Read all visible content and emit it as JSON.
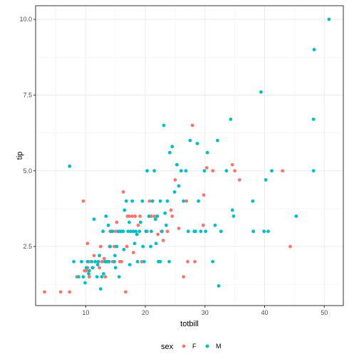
{
  "chart_data": {
    "type": "scatter",
    "xlabel": "totbill",
    "ylabel": "tip",
    "xlim": [
      1.6,
      53.2
    ],
    "ylim": [
      0.55,
      10.45
    ],
    "xticks": [
      10,
      20,
      30,
      40,
      50
    ],
    "yticks": [
      2.5,
      5.0,
      7.5,
      10.0
    ],
    "xtick_labels": [
      "10",
      "20",
      "30",
      "40",
      "50"
    ],
    "ytick_labels": [
      "2.5",
      "5.0",
      "7.5",
      "10.0"
    ],
    "grid": true,
    "theme": "bw",
    "legend": {
      "title": "sex",
      "position": "bottom",
      "entries": [
        "F",
        "M"
      ]
    },
    "colors": {
      "F": "#F8766D",
      "M": "#00BFC4"
    },
    "series": [
      {
        "name": "F",
        "color": "#F8766D",
        "points": [
          [
            3.1,
            1.0
          ],
          [
            5.8,
            1.0
          ],
          [
            7.3,
            1.0
          ],
          [
            8.5,
            1.5
          ],
          [
            9.6,
            4.0
          ],
          [
            9.8,
            1.7
          ],
          [
            10.1,
            1.7
          ],
          [
            10.3,
            2.6
          ],
          [
            10.6,
            1.5
          ],
          [
            10.3,
            1.8
          ],
          [
            10.6,
            2.0
          ],
          [
            11.1,
            1.8
          ],
          [
            11.4,
            2.2
          ],
          [
            11.6,
            2.0
          ],
          [
            12.1,
            2.0
          ],
          [
            12.3,
            1.8
          ],
          [
            12.5,
            2.5
          ],
          [
            12.7,
            2.0
          ],
          [
            13.3,
            1.5
          ],
          [
            13.4,
            2.0
          ],
          [
            13.8,
            2.0
          ],
          [
            14.0,
            2.5
          ],
          [
            14.1,
            3.0
          ],
          [
            14.5,
            2.0
          ],
          [
            14.8,
            2.5
          ],
          [
            15.0,
            3.0
          ],
          [
            15.4,
            3.0
          ],
          [
            15.7,
            2.0
          ],
          [
            16.0,
            2.0
          ],
          [
            16.3,
            4.3
          ],
          [
            16.7,
            1.0
          ],
          [
            17.0,
            3.5
          ],
          [
            16.9,
            2.5
          ],
          [
            17.3,
            3.5
          ],
          [
            17.5,
            3.0
          ],
          [
            17.8,
            3.5
          ],
          [
            18.3,
            3.5
          ],
          [
            18.8,
            3.2
          ],
          [
            19.1,
            3.5
          ],
          [
            19.4,
            2.0
          ],
          [
            20.3,
            3.0
          ],
          [
            20.7,
            4.0
          ],
          [
            21.0,
            3.5
          ],
          [
            21.5,
            3.5
          ],
          [
            22.1,
            2.9
          ],
          [
            22.7,
            3.0
          ],
          [
            23.0,
            2.7
          ],
          [
            23.7,
            3.0
          ],
          [
            24.5,
            3.5
          ],
          [
            25.0,
            4.7
          ],
          [
            25.6,
            3.1
          ],
          [
            26.4,
            1.5
          ],
          [
            27.1,
            2.0
          ],
          [
            27.9,
            6.5
          ],
          [
            28.3,
            2.0
          ],
          [
            29.7,
            3.2
          ],
          [
            29.8,
            4.2
          ],
          [
            30.3,
            5.1
          ],
          [
            31.3,
            5.0
          ],
          [
            34.6,
            5.2
          ],
          [
            35.0,
            5.0
          ],
          [
            35.8,
            4.7
          ],
          [
            43.0,
            5.0
          ],
          [
            44.3,
            2.5
          ],
          [
            15.2,
            3.3
          ],
          [
            13.1,
            2.1
          ],
          [
            18.0,
            2.3
          ],
          [
            24.3,
            3.7
          ],
          [
            26.9,
            4.0
          ]
        ]
      },
      {
        "name": "M",
        "color": "#00BFC4",
        "points": [
          [
            7.3,
            5.15
          ],
          [
            8.0,
            2.0
          ],
          [
            8.8,
            1.5
          ],
          [
            9.3,
            2.0
          ],
          [
            9.6,
            1.5
          ],
          [
            9.9,
            1.3
          ],
          [
            10.1,
            1.8
          ],
          [
            10.3,
            2.0
          ],
          [
            10.5,
            1.6
          ],
          [
            10.6,
            1.7
          ],
          [
            11.0,
            2.0
          ],
          [
            11.2,
            1.8
          ],
          [
            11.4,
            3.4
          ],
          [
            11.6,
            2.0
          ],
          [
            11.9,
            1.5
          ],
          [
            12.1,
            2.0
          ],
          [
            12.3,
            2.2
          ],
          [
            12.5,
            1.1
          ],
          [
            12.7,
            1.5
          ],
          [
            12.9,
            3.0
          ],
          [
            13.0,
            1.6
          ],
          [
            13.2,
            2.0
          ],
          [
            13.4,
            3.5
          ],
          [
            13.6,
            2.0
          ],
          [
            13.9,
            2.0
          ],
          [
            14.1,
            2.5
          ],
          [
            14.3,
            3.0
          ],
          [
            14.5,
            3.0
          ],
          [
            14.8,
            2.0
          ],
          [
            15.0,
            1.8
          ],
          [
            15.2,
            2.5
          ],
          [
            15.5,
            3.0
          ],
          [
            15.8,
            3.0
          ],
          [
            16.0,
            3.0
          ],
          [
            16.3,
            3.0
          ],
          [
            16.5,
            3.7
          ],
          [
            16.8,
            4.0
          ],
          [
            17.1,
            3.0
          ],
          [
            17.3,
            3.3
          ],
          [
            17.6,
            3.0
          ],
          [
            17.8,
            4.0
          ],
          [
            18.0,
            3.0
          ],
          [
            18.2,
            2.6
          ],
          [
            18.4,
            3.0
          ],
          [
            18.7,
            2.0
          ],
          [
            19.0,
            3.0
          ],
          [
            19.2,
            3.3
          ],
          [
            19.5,
            4.0
          ],
          [
            19.8,
            2.0
          ],
          [
            20.1,
            3.0
          ],
          [
            20.3,
            5.0
          ],
          [
            20.6,
            3.5
          ],
          [
            20.9,
            2.5
          ],
          [
            21.0,
            3.0
          ],
          [
            21.2,
            4.0
          ],
          [
            21.5,
            5.0
          ],
          [
            21.7,
            3.4
          ],
          [
            22.0,
            3.5
          ],
          [
            22.2,
            2.0
          ],
          [
            22.5,
            4.0
          ],
          [
            22.8,
            3.0
          ],
          [
            23.1,
            6.5
          ],
          [
            23.3,
            3.6
          ],
          [
            23.7,
            4.0
          ],
          [
            24.0,
            2.0
          ],
          [
            24.1,
            5.6
          ],
          [
            24.5,
            5.8
          ],
          [
            24.9,
            4.3
          ],
          [
            25.3,
            5.2
          ],
          [
            25.6,
            4.5
          ],
          [
            26.0,
            5.0
          ],
          [
            26.4,
            4.0
          ],
          [
            26.8,
            5.0
          ],
          [
            27.2,
            3.0
          ],
          [
            27.5,
            6.0
          ],
          [
            28.2,
            3.0
          ],
          [
            28.4,
            3.0
          ],
          [
            28.7,
            5.9
          ],
          [
            28.9,
            4.0
          ],
          [
            29.3,
            3.0
          ],
          [
            29.9,
            5.0
          ],
          [
            30.1,
            3.0
          ],
          [
            30.4,
            5.6
          ],
          [
            31.3,
            2.0
          ],
          [
            31.7,
            3.2
          ],
          [
            32.1,
            6.0
          ],
          [
            32.3,
            1.2
          ],
          [
            32.7,
            3.0
          ],
          [
            33.6,
            5.0
          ],
          [
            34.3,
            6.7
          ],
          [
            34.6,
            3.7
          ],
          [
            34.8,
            3.5
          ],
          [
            38.0,
            4.0
          ],
          [
            38.1,
            3.0
          ],
          [
            39.4,
            7.6
          ],
          [
            39.9,
            3.0
          ],
          [
            40.2,
            4.7
          ],
          [
            40.6,
            3.0
          ],
          [
            41.2,
            5.0
          ],
          [
            45.3,
            3.5
          ],
          [
            48.2,
            5.0
          ],
          [
            48.2,
            6.7
          ],
          [
            48.3,
            9.0
          ],
          [
            50.8,
            10.0
          ],
          [
            14.9,
            2.2
          ],
          [
            16.4,
            2.4
          ],
          [
            13.8,
            3.2
          ],
          [
            18.6,
            2.9
          ],
          [
            21.8,
            2.6
          ],
          [
            23.5,
            3.2
          ],
          [
            17.4,
            1.9
          ],
          [
            15.6,
            1.5
          ],
          [
            12.0,
            1.9
          ],
          [
            19.6,
            2.5
          ],
          [
            22.5,
            2.0
          ]
        ]
      }
    ]
  }
}
